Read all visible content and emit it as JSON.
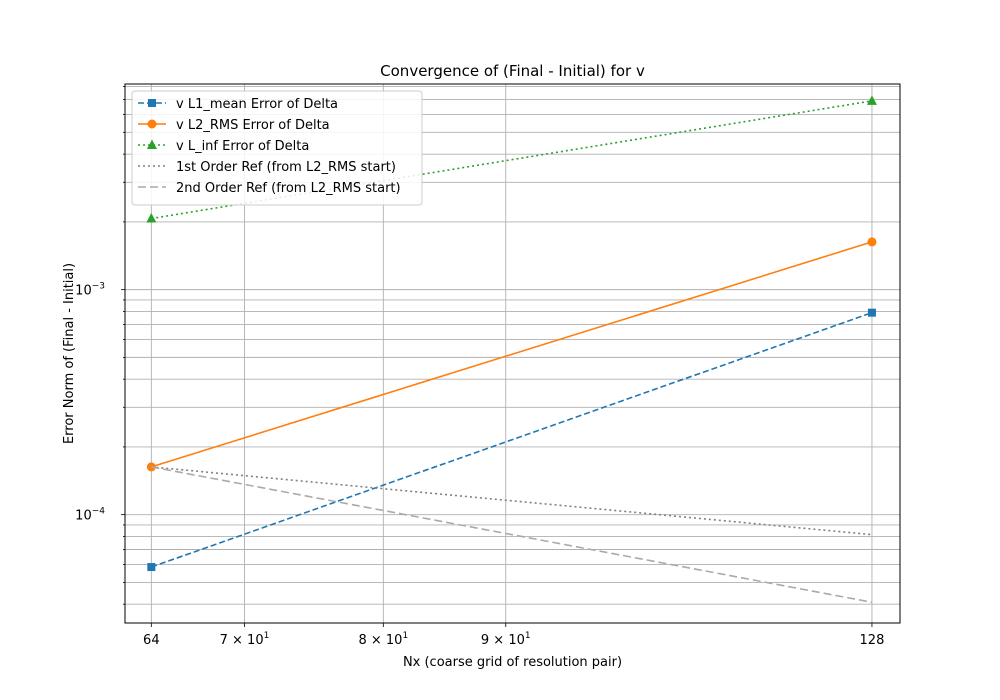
{
  "chart_data": {
    "type": "line",
    "title": "Convergence of (Final - Initial) for v",
    "xlabel": "Nx (coarse grid of resolution pair)",
    "ylabel": "Error Norm of (Final - Initial)",
    "xscale": "log",
    "yscale": "log",
    "xlim": [
      62.4,
      131.5
    ],
    "ylim": [
      3.3e-05,
      0.0082
    ],
    "grid": true,
    "legend_position": "top-left",
    "x_ticks": [
      {
        "value": 64,
        "label": "64"
      },
      {
        "value": 70,
        "label": "7 × 10",
        "exp": "1"
      },
      {
        "value": 80,
        "label": "8 × 10",
        "exp": "1"
      },
      {
        "value": 90,
        "label": "9 × 10",
        "exp": "1"
      },
      {
        "value": 128,
        "label": "128"
      }
    ],
    "y_ticks": [
      {
        "value": 0.0001,
        "label": "10",
        "exp": "−4"
      },
      {
        "value": 0.001,
        "label": "10",
        "exp": "−3"
      }
    ],
    "series": [
      {
        "name": "v L1_mean Error of Delta",
        "x": [
          64,
          128
        ],
        "y": [
          5.85e-05,
          0.00079
        ],
        "color": "#1f77b4",
        "dash": "6,3",
        "marker": "square",
        "width": 1.6
      },
      {
        "name": "v L2_RMS Error of Delta",
        "x": [
          64,
          128
        ],
        "y": [
          0.000163,
          0.00163
        ],
        "color": "#ff7f0e",
        "dash": "",
        "marker": "circle",
        "width": 1.6
      },
      {
        "name": "v L_inf Error of Delta",
        "x": [
          64,
          128
        ],
        "y": [
          0.00207,
          0.0069
        ],
        "color": "#2ca02c",
        "dash": "2,3",
        "marker": "triangle",
        "width": 1.6
      },
      {
        "name": "1st Order Ref (from L2_RMS start)",
        "x": [
          64,
          128
        ],
        "y": [
          0.000163,
          8.15e-05
        ],
        "color": "#808080",
        "dash": "2,3",
        "marker": "none",
        "width": 1.6
      },
      {
        "name": "2nd Order Ref (from L2_RMS start)",
        "x": [
          64,
          128
        ],
        "y": [
          0.000163,
          4.08e-05
        ],
        "color": "#aaaaaa",
        "dash": "8,4",
        "marker": "none",
        "width": 1.6
      }
    ]
  }
}
